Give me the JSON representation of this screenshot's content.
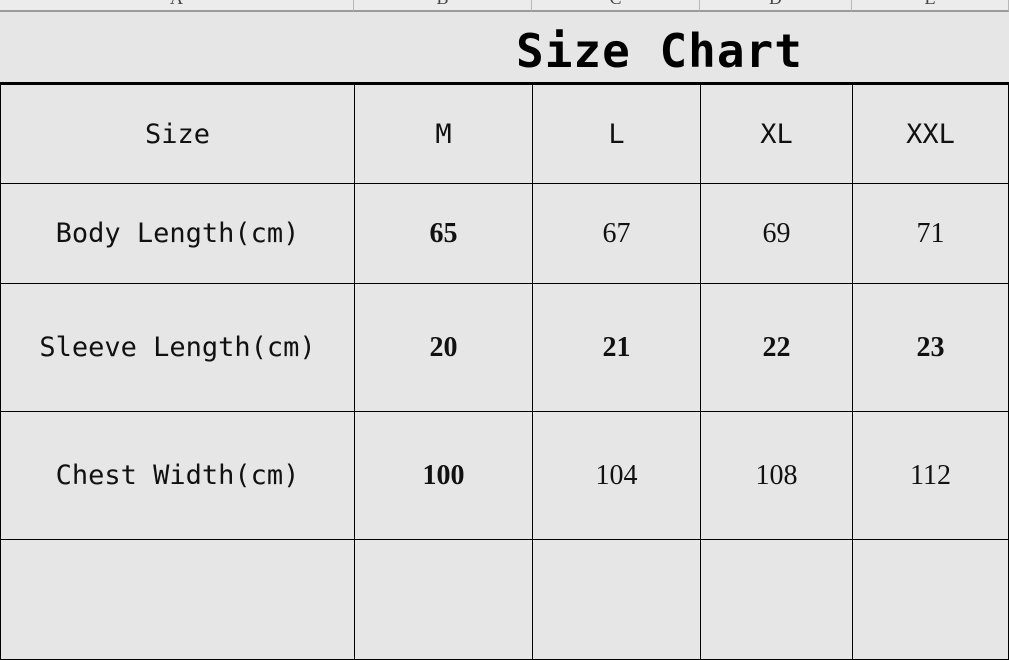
{
  "columns": [
    "A",
    "B",
    "C",
    "D",
    "E"
  ],
  "title": "Size Chart",
  "header": {
    "label": "Size",
    "sizes": [
      "M",
      "L",
      "XL",
      "XXL"
    ]
  },
  "rows": [
    {
      "label": "Body Length(cm)",
      "values": [
        "65",
        "67",
        "69",
        "71"
      ]
    },
    {
      "label": "Sleeve Length(cm)",
      "values": [
        "20",
        "21",
        "22",
        "23"
      ]
    },
    {
      "label": "Chest Width(cm)",
      "values": [
        "100",
        "104",
        "108",
        "112"
      ]
    },
    {
      "label": "",
      "values": [
        "",
        "",
        "",
        ""
      ]
    }
  ]
}
